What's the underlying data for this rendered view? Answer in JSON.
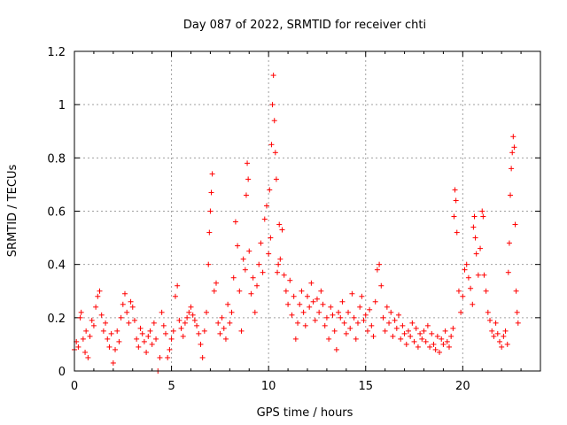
{
  "chart_data": {
    "type": "scatter",
    "title": "Day 087 of 2022, SRMTID for receiver chti",
    "xlabel": "GPS time / hours",
    "ylabel": "SRMTID / TECUs",
    "xlim": [
      0,
      24
    ],
    "ylim": [
      0,
      1.2
    ],
    "x_ticks": [
      0,
      5,
      10,
      15,
      20
    ],
    "x_tick_labels": [
      "0",
      "5",
      "10",
      "15",
      "20"
    ],
    "y_ticks": [
      0,
      0.2,
      0.4,
      0.6,
      0.8,
      1,
      1.2
    ],
    "y_tick_labels": [
      "0",
      "0.2",
      "0.4",
      "0.6",
      "0.8",
      "1",
      "1.2"
    ],
    "grid": true,
    "marker": "+",
    "color": "#ff0000",
    "series": [
      {
        "name": "SRMTID",
        "points": [
          [
            0.0,
            0.08
          ],
          [
            0.1,
            0.11
          ],
          [
            0.2,
            0.09
          ],
          [
            0.3,
            0.2
          ],
          [
            0.35,
            0.22
          ],
          [
            0.45,
            0.12
          ],
          [
            0.55,
            0.07
          ],
          [
            0.6,
            0.15
          ],
          [
            0.7,
            0.05
          ],
          [
            0.8,
            0.13
          ],
          [
            0.9,
            0.19
          ],
          [
            1.0,
            0.17
          ],
          [
            1.1,
            0.24
          ],
          [
            1.2,
            0.28
          ],
          [
            1.3,
            0.3
          ],
          [
            1.4,
            0.21
          ],
          [
            1.5,
            0.15
          ],
          [
            1.6,
            0.18
          ],
          [
            1.7,
            0.12
          ],
          [
            1.8,
            0.09
          ],
          [
            1.9,
            0.14
          ],
          [
            2.0,
            0.03
          ],
          [
            2.1,
            0.08
          ],
          [
            2.2,
            0.15
          ],
          [
            2.3,
            0.11
          ],
          [
            2.4,
            0.2
          ],
          [
            2.5,
            0.25
          ],
          [
            2.6,
            0.29
          ],
          [
            2.7,
            0.22
          ],
          [
            2.8,
            0.18
          ],
          [
            2.9,
            0.26
          ],
          [
            3.0,
            0.24
          ],
          [
            3.1,
            0.19
          ],
          [
            3.2,
            0.12
          ],
          [
            3.3,
            0.09
          ],
          [
            3.4,
            0.16
          ],
          [
            3.5,
            0.14
          ],
          [
            3.6,
            0.11
          ],
          [
            3.7,
            0.07
          ],
          [
            3.8,
            0.13
          ],
          [
            3.9,
            0.15
          ],
          [
            4.0,
            0.1
          ],
          [
            4.1,
            0.18
          ],
          [
            4.2,
            0.12
          ],
          [
            4.3,
            0.0
          ],
          [
            4.4,
            0.05
          ],
          [
            4.5,
            0.22
          ],
          [
            4.6,
            0.17
          ],
          [
            4.7,
            0.14
          ],
          [
            4.8,
            0.05
          ],
          [
            4.9,
            0.08
          ],
          [
            5.0,
            0.12
          ],
          [
            5.1,
            0.15
          ],
          [
            5.2,
            0.28
          ],
          [
            5.3,
            0.32
          ],
          [
            5.4,
            0.19
          ],
          [
            5.5,
            0.16
          ],
          [
            5.6,
            0.13
          ],
          [
            5.7,
            0.18
          ],
          [
            5.8,
            0.2
          ],
          [
            5.9,
            0.22
          ],
          [
            6.0,
            0.24
          ],
          [
            6.1,
            0.21
          ],
          [
            6.2,
            0.19
          ],
          [
            6.3,
            0.17
          ],
          [
            6.4,
            0.14
          ],
          [
            6.5,
            0.1
          ],
          [
            6.6,
            0.05
          ],
          [
            6.7,
            0.15
          ],
          [
            6.8,
            0.22
          ],
          [
            6.9,
            0.4
          ],
          [
            6.95,
            0.52
          ],
          [
            7.0,
            0.6
          ],
          [
            7.05,
            0.67
          ],
          [
            7.1,
            0.74
          ],
          [
            7.2,
            0.3
          ],
          [
            7.3,
            0.33
          ],
          [
            7.4,
            0.18
          ],
          [
            7.5,
            0.14
          ],
          [
            7.6,
            0.2
          ],
          [
            7.7,
            0.16
          ],
          [
            7.8,
            0.12
          ],
          [
            7.9,
            0.25
          ],
          [
            8.0,
            0.18
          ],
          [
            8.1,
            0.22
          ],
          [
            8.2,
            0.35
          ],
          [
            8.3,
            0.56
          ],
          [
            8.4,
            0.47
          ],
          [
            8.5,
            0.3
          ],
          [
            8.6,
            0.15
          ],
          [
            8.7,
            0.42
          ],
          [
            8.8,
            0.38
          ],
          [
            8.85,
            0.66
          ],
          [
            8.9,
            0.78
          ],
          [
            8.95,
            0.72
          ],
          [
            9.0,
            0.45
          ],
          [
            9.1,
            0.29
          ],
          [
            9.2,
            0.35
          ],
          [
            9.3,
            0.22
          ],
          [
            9.4,
            0.32
          ],
          [
            9.5,
            0.4
          ],
          [
            9.6,
            0.48
          ],
          [
            9.7,
            0.37
          ],
          [
            9.8,
            0.57
          ],
          [
            9.9,
            0.62
          ],
          [
            10.0,
            0.44
          ],
          [
            10.05,
            0.68
          ],
          [
            10.1,
            0.5
          ],
          [
            10.15,
            0.85
          ],
          [
            10.2,
            1.0
          ],
          [
            10.25,
            1.11
          ],
          [
            10.3,
            0.94
          ],
          [
            10.35,
            0.82
          ],
          [
            10.4,
            0.72
          ],
          [
            10.45,
            0.37
          ],
          [
            10.5,
            0.4
          ],
          [
            10.55,
            0.55
          ],
          [
            10.6,
            0.42
          ],
          [
            10.7,
            0.53
          ],
          [
            10.8,
            0.36
          ],
          [
            10.9,
            0.3
          ],
          [
            11.0,
            0.25
          ],
          [
            11.1,
            0.34
          ],
          [
            11.2,
            0.21
          ],
          [
            11.3,
            0.28
          ],
          [
            11.4,
            0.12
          ],
          [
            11.5,
            0.18
          ],
          [
            11.6,
            0.25
          ],
          [
            11.7,
            0.3
          ],
          [
            11.8,
            0.22
          ],
          [
            11.9,
            0.17
          ],
          [
            12.0,
            0.28
          ],
          [
            12.1,
            0.24
          ],
          [
            12.2,
            0.33
          ],
          [
            12.3,
            0.26
          ],
          [
            12.4,
            0.19
          ],
          [
            12.5,
            0.27
          ],
          [
            12.6,
            0.22
          ],
          [
            12.7,
            0.3
          ],
          [
            12.8,
            0.25
          ],
          [
            12.9,
            0.17
          ],
          [
            13.0,
            0.2
          ],
          [
            13.1,
            0.12
          ],
          [
            13.2,
            0.24
          ],
          [
            13.3,
            0.21
          ],
          [
            13.4,
            0.15
          ],
          [
            13.5,
            0.08
          ],
          [
            13.6,
            0.22
          ],
          [
            13.7,
            0.2
          ],
          [
            13.8,
            0.26
          ],
          [
            13.9,
            0.18
          ],
          [
            14.0,
            0.14
          ],
          [
            14.1,
            0.22
          ],
          [
            14.2,
            0.16
          ],
          [
            14.3,
            0.29
          ],
          [
            14.4,
            0.2
          ],
          [
            14.5,
            0.12
          ],
          [
            14.6,
            0.18
          ],
          [
            14.7,
            0.24
          ],
          [
            14.8,
            0.28
          ],
          [
            14.9,
            0.19
          ],
          [
            15.0,
            0.21
          ],
          [
            15.1,
            0.15
          ],
          [
            15.2,
            0.23
          ],
          [
            15.3,
            0.17
          ],
          [
            15.4,
            0.13
          ],
          [
            15.5,
            0.26
          ],
          [
            15.6,
            0.38
          ],
          [
            15.7,
            0.4
          ],
          [
            15.8,
            0.32
          ],
          [
            15.9,
            0.2
          ],
          [
            16.0,
            0.15
          ],
          [
            16.1,
            0.24
          ],
          [
            16.2,
            0.18
          ],
          [
            16.3,
            0.22
          ],
          [
            16.4,
            0.13
          ],
          [
            16.5,
            0.19
          ],
          [
            16.6,
            0.16
          ],
          [
            16.7,
            0.21
          ],
          [
            16.8,
            0.12
          ],
          [
            16.9,
            0.17
          ],
          [
            17.0,
            0.14
          ],
          [
            17.1,
            0.1
          ],
          [
            17.2,
            0.15
          ],
          [
            17.3,
            0.13
          ],
          [
            17.4,
            0.18
          ],
          [
            17.5,
            0.11
          ],
          [
            17.6,
            0.16
          ],
          [
            17.7,
            0.09
          ],
          [
            17.8,
            0.14
          ],
          [
            17.9,
            0.12
          ],
          [
            18.0,
            0.15
          ],
          [
            18.1,
            0.11
          ],
          [
            18.2,
            0.17
          ],
          [
            18.3,
            0.09
          ],
          [
            18.4,
            0.14
          ],
          [
            18.5,
            0.1
          ],
          [
            18.6,
            0.08
          ],
          [
            18.7,
            0.13
          ],
          [
            18.8,
            0.07
          ],
          [
            18.9,
            0.12
          ],
          [
            19.0,
            0.1
          ],
          [
            19.1,
            0.15
          ],
          [
            19.2,
            0.11
          ],
          [
            19.3,
            0.09
          ],
          [
            19.4,
            0.13
          ],
          [
            19.5,
            0.16
          ],
          [
            19.55,
            0.58
          ],
          [
            19.6,
            0.68
          ],
          [
            19.65,
            0.64
          ],
          [
            19.7,
            0.52
          ],
          [
            19.8,
            0.3
          ],
          [
            19.9,
            0.22
          ],
          [
            20.0,
            0.28
          ],
          [
            20.1,
            0.38
          ],
          [
            20.2,
            0.4
          ],
          [
            20.3,
            0.35
          ],
          [
            20.4,
            0.31
          ],
          [
            20.5,
            0.25
          ],
          [
            20.55,
            0.54
          ],
          [
            20.6,
            0.58
          ],
          [
            20.65,
            0.5
          ],
          [
            20.7,
            0.44
          ],
          [
            20.8,
            0.36
          ],
          [
            20.9,
            0.46
          ],
          [
            21.0,
            0.6
          ],
          [
            21.05,
            0.58
          ],
          [
            21.1,
            0.36
          ],
          [
            21.2,
            0.3
          ],
          [
            21.3,
            0.22
          ],
          [
            21.4,
            0.19
          ],
          [
            21.5,
            0.15
          ],
          [
            21.6,
            0.13
          ],
          [
            21.7,
            0.18
          ],
          [
            21.8,
            0.14
          ],
          [
            21.9,
            0.11
          ],
          [
            22.0,
            0.09
          ],
          [
            22.1,
            0.13
          ],
          [
            22.2,
            0.15
          ],
          [
            22.3,
            0.1
          ],
          [
            22.35,
            0.37
          ],
          [
            22.4,
            0.48
          ],
          [
            22.45,
            0.66
          ],
          [
            22.5,
            0.76
          ],
          [
            22.55,
            0.82
          ],
          [
            22.6,
            0.88
          ],
          [
            22.65,
            0.84
          ],
          [
            22.7,
            0.55
          ],
          [
            22.75,
            0.3
          ],
          [
            22.8,
            0.22
          ],
          [
            22.85,
            0.18
          ]
        ]
      }
    ]
  }
}
